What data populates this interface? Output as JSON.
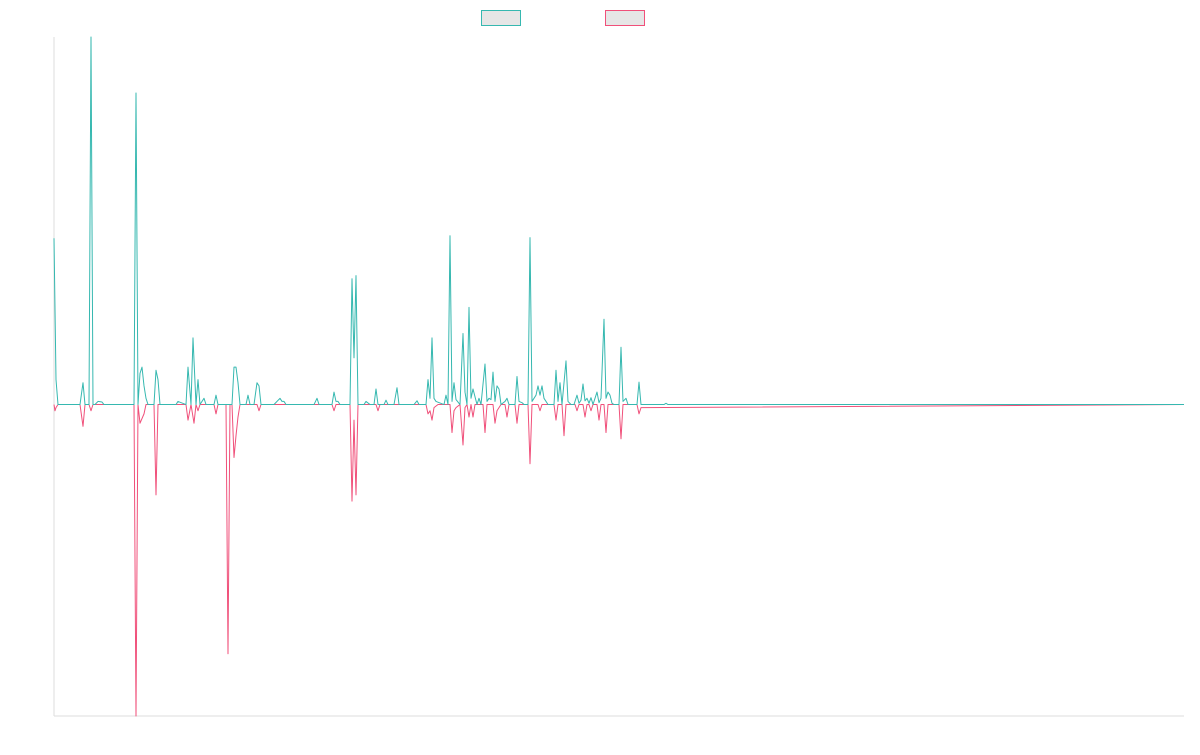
{
  "colors": {
    "series_positive": "#36b8b0",
    "series_negative": "#f0507a",
    "axis": "#dddddd",
    "legend_fill": "#e6e6e6"
  },
  "chart_data": {
    "type": "line",
    "title": "",
    "xlabel": "",
    "ylabel": "",
    "legend": {
      "placement": "top-center"
    },
    "grid": false,
    "axis_ticks_shown": false,
    "ylim": [
      -5.0,
      5.9
    ],
    "xlim": [
      0,
      1130
    ],
    "series": [
      {
        "color": "#36b8b0",
        "points": [
          [
            0,
            2.67
          ],
          [
            2,
            0.4
          ],
          [
            4,
            0
          ],
          [
            26,
            0
          ],
          [
            29,
            0.35
          ],
          [
            31,
            0
          ],
          [
            35,
            0
          ],
          [
            37,
            5.9
          ],
          [
            39,
            0
          ],
          [
            41,
            0
          ],
          [
            44,
            0.05
          ],
          [
            48,
            0.04
          ],
          [
            50,
            0
          ],
          [
            80,
            0
          ],
          [
            82,
            5.0
          ],
          [
            84,
            0
          ],
          [
            86,
            0.5
          ],
          [
            88,
            0.6
          ],
          [
            90,
            0.3
          ],
          [
            92,
            0.1
          ],
          [
            94,
            0
          ],
          [
            100,
            0
          ],
          [
            102,
            0.55
          ],
          [
            104,
            0.4
          ],
          [
            106,
            0
          ],
          [
            110,
            0
          ],
          [
            122,
            0
          ],
          [
            124,
            0.05
          ],
          [
            132,
            0
          ],
          [
            134,
            0.6
          ],
          [
            137,
            0
          ],
          [
            139,
            1.07
          ],
          [
            142,
            0
          ],
          [
            144,
            0.4
          ],
          [
            146,
            0
          ],
          [
            150,
            0.1
          ],
          [
            152,
            0
          ],
          [
            160,
            0
          ],
          [
            162,
            0.15
          ],
          [
            164,
            0
          ],
          [
            178,
            0
          ],
          [
            180,
            0.6
          ],
          [
            182,
            0.6
          ],
          [
            184,
            0.35
          ],
          [
            186,
            0
          ],
          [
            192,
            0
          ],
          [
            194,
            0.15
          ],
          [
            196,
            0
          ],
          [
            200,
            0
          ],
          [
            203,
            0.35
          ],
          [
            205,
            0.3
          ],
          [
            207,
            0
          ],
          [
            220,
            0
          ],
          [
            226,
            0.1
          ],
          [
            228,
            0.05
          ],
          [
            230,
            0.05
          ],
          [
            232,
            0
          ],
          [
            260,
            0
          ],
          [
            263,
            0.1
          ],
          [
            265,
            0
          ],
          [
            278,
            0
          ],
          [
            280,
            0.2
          ],
          [
            282,
            0.05
          ],
          [
            284,
            0.05
          ],
          [
            286,
            0
          ],
          [
            296,
            0
          ],
          [
            298,
            2.02
          ],
          [
            300,
            0.75
          ],
          [
            302,
            2.07
          ],
          [
            304,
            0
          ],
          [
            310,
            0
          ],
          [
            312,
            0.05
          ],
          [
            316,
            0
          ],
          [
            320,
            0
          ],
          [
            322,
            0.25
          ],
          [
            324,
            0
          ],
          [
            330,
            0
          ],
          [
            332,
            0.07
          ],
          [
            334,
            0
          ],
          [
            340,
            0
          ],
          [
            343,
            0.27
          ],
          [
            345,
            0
          ],
          [
            360,
            0
          ],
          [
            363,
            0.06
          ],
          [
            365,
            0
          ],
          [
            372,
            0
          ],
          [
            374,
            0.4
          ],
          [
            376,
            0.1
          ],
          [
            378,
            1.07
          ],
          [
            380,
            0.1
          ],
          [
            382,
            0.05
          ],
          [
            390,
            0
          ],
          [
            392,
            0.15
          ],
          [
            394,
            0
          ],
          [
            396,
            2.71
          ],
          [
            398,
            0.05
          ],
          [
            400,
            0.35
          ],
          [
            402,
            0.08
          ],
          [
            406,
            0
          ],
          [
            409,
            1.14
          ],
          [
            411,
            0.2
          ],
          [
            413,
            0
          ],
          [
            415,
            1.56
          ],
          [
            417,
            0.1
          ],
          [
            419,
            0.25
          ],
          [
            423,
            0
          ],
          [
            425,
            0.1
          ],
          [
            427,
            0
          ],
          [
            431,
            0.65
          ],
          [
            433,
            0.05
          ],
          [
            435,
            0.1
          ],
          [
            437,
            0.08
          ],
          [
            439,
            0.52
          ],
          [
            441,
            0.05
          ],
          [
            443,
            0.3
          ],
          [
            445,
            0.25
          ],
          [
            447,
            0
          ],
          [
            451,
            0.05
          ],
          [
            453,
            0.1
          ],
          [
            455,
            0
          ],
          [
            461,
            0
          ],
          [
            463,
            0.45
          ],
          [
            465,
            0.05
          ],
          [
            468,
            0.03
          ],
          [
            470,
            0
          ],
          [
            474,
            0
          ],
          [
            476,
            2.68
          ],
          [
            478,
            0.05
          ],
          [
            480,
            0.1
          ],
          [
            482,
            0.15
          ],
          [
            484,
            0.3
          ],
          [
            486,
            0.15
          ],
          [
            488,
            0.3
          ],
          [
            490,
            0.1
          ],
          [
            494,
            0
          ],
          [
            500,
            0
          ],
          [
            502,
            0.55
          ],
          [
            504,
            0.05
          ],
          [
            506,
            0.35
          ],
          [
            508,
            0
          ],
          [
            512,
            0.7
          ],
          [
            514,
            0.05
          ],
          [
            517,
            0
          ],
          [
            520,
            0
          ],
          [
            523,
            0.15
          ],
          [
            525,
            0.02
          ],
          [
            527,
            0.07
          ],
          [
            529,
            0.33
          ],
          [
            531,
            0.06
          ],
          [
            533,
            0.1
          ],
          [
            535,
            0.02
          ],
          [
            537,
            0.11
          ],
          [
            539,
            0
          ],
          [
            543,
            0.2
          ],
          [
            545,
            0.03
          ],
          [
            547,
            0.1
          ],
          [
            550,
            1.37
          ],
          [
            552,
            0.1
          ],
          [
            554,
            0.2
          ],
          [
            556,
            0.15
          ],
          [
            558,
            0.02
          ],
          [
            560,
            0
          ],
          [
            565,
            0
          ],
          [
            567,
            0.92
          ],
          [
            569,
            0.05
          ],
          [
            572,
            0.1
          ],
          [
            574,
            0
          ],
          [
            583,
            0
          ],
          [
            585,
            0.36
          ],
          [
            587,
            0
          ],
          [
            600,
            0
          ],
          [
            610,
            0
          ],
          [
            612,
            0.02
          ],
          [
            614,
            0
          ],
          [
            1130,
            0
          ]
        ]
      },
      {
        "color": "#f0507a",
        "points": [
          [
            0,
            0
          ],
          [
            1,
            -0.1
          ],
          [
            2,
            -0.05
          ],
          [
            4,
            0
          ],
          [
            26,
            0
          ],
          [
            29,
            -0.35
          ],
          [
            31,
            0
          ],
          [
            35,
            0
          ],
          [
            37,
            -0.1
          ],
          [
            39,
            0
          ],
          [
            80,
            0
          ],
          [
            82,
            -5.0
          ],
          [
            84,
            0
          ],
          [
            86,
            -0.3
          ],
          [
            90,
            -0.15
          ],
          [
            92,
            0
          ],
          [
            100,
            0
          ],
          [
            102,
            -1.45
          ],
          [
            104,
            0
          ],
          [
            132,
            0
          ],
          [
            134,
            -0.25
          ],
          [
            137,
            0
          ],
          [
            140,
            -0.3
          ],
          [
            142,
            0
          ],
          [
            144,
            -0.1
          ],
          [
            146,
            0
          ],
          [
            160,
            0
          ],
          [
            162,
            -0.15
          ],
          [
            164,
            0
          ],
          [
            172,
            0
          ],
          [
            174,
            -4.0
          ],
          [
            176,
            0
          ],
          [
            178,
            0
          ],
          [
            180,
            -0.85
          ],
          [
            182,
            -0.5
          ],
          [
            184,
            -0.2
          ],
          [
            186,
            0
          ],
          [
            203,
            0
          ],
          [
            205,
            -0.1
          ],
          [
            207,
            0
          ],
          [
            278,
            0
          ],
          [
            280,
            -0.1
          ],
          [
            282,
            0
          ],
          [
            296,
            0
          ],
          [
            298,
            -1.55
          ],
          [
            300,
            -0.25
          ],
          [
            302,
            -1.45
          ],
          [
            304,
            0
          ],
          [
            322,
            0
          ],
          [
            324,
            -0.1
          ],
          [
            326,
            0
          ],
          [
            372,
            0
          ],
          [
            374,
            -0.15
          ],
          [
            376,
            -0.1
          ],
          [
            378,
            -0.25
          ],
          [
            380,
            -0.05
          ],
          [
            384,
            0
          ],
          [
            396,
            0
          ],
          [
            398,
            -0.45
          ],
          [
            400,
            -0.1
          ],
          [
            402,
            -0.05
          ],
          [
            406,
            0
          ],
          [
            409,
            -0.65
          ],
          [
            411,
            -0.05
          ],
          [
            413,
            0
          ],
          [
            415,
            -0.2
          ],
          [
            417,
            0
          ],
          [
            419,
            -0.2
          ],
          [
            421,
            0
          ],
          [
            429,
            0
          ],
          [
            431,
            -0.45
          ],
          [
            433,
            0
          ],
          [
            439,
            0
          ],
          [
            441,
            -0.3
          ],
          [
            443,
            -0.1
          ],
          [
            447,
            0
          ],
          [
            451,
            0
          ],
          [
            453,
            -0.2
          ],
          [
            455,
            0
          ],
          [
            461,
            0
          ],
          [
            463,
            -0.3
          ],
          [
            465,
            0
          ],
          [
            474,
            0
          ],
          [
            476,
            -0.95
          ],
          [
            478,
            0
          ],
          [
            484,
            0
          ],
          [
            486,
            -0.1
          ],
          [
            488,
            0
          ],
          [
            500,
            0
          ],
          [
            502,
            -0.25
          ],
          [
            504,
            0
          ],
          [
            508,
            0
          ],
          [
            510,
            -0.5
          ],
          [
            512,
            0
          ],
          [
            521,
            0
          ],
          [
            523,
            -0.1
          ],
          [
            525,
            0
          ],
          [
            529,
            0
          ],
          [
            531,
            -0.2
          ],
          [
            533,
            0
          ],
          [
            535,
            0
          ],
          [
            537,
            -0.1
          ],
          [
            539,
            0
          ],
          [
            543,
            0
          ],
          [
            545,
            -0.25
          ],
          [
            547,
            0
          ],
          [
            550,
            0
          ],
          [
            552,
            -0.45
          ],
          [
            554,
            0
          ],
          [
            565,
            0
          ],
          [
            567,
            -0.55
          ],
          [
            569,
            0
          ],
          [
            583,
            0
          ],
          [
            585,
            -0.15
          ],
          [
            587,
            -0.05
          ],
          [
            1130,
            0
          ]
        ]
      }
    ]
  }
}
